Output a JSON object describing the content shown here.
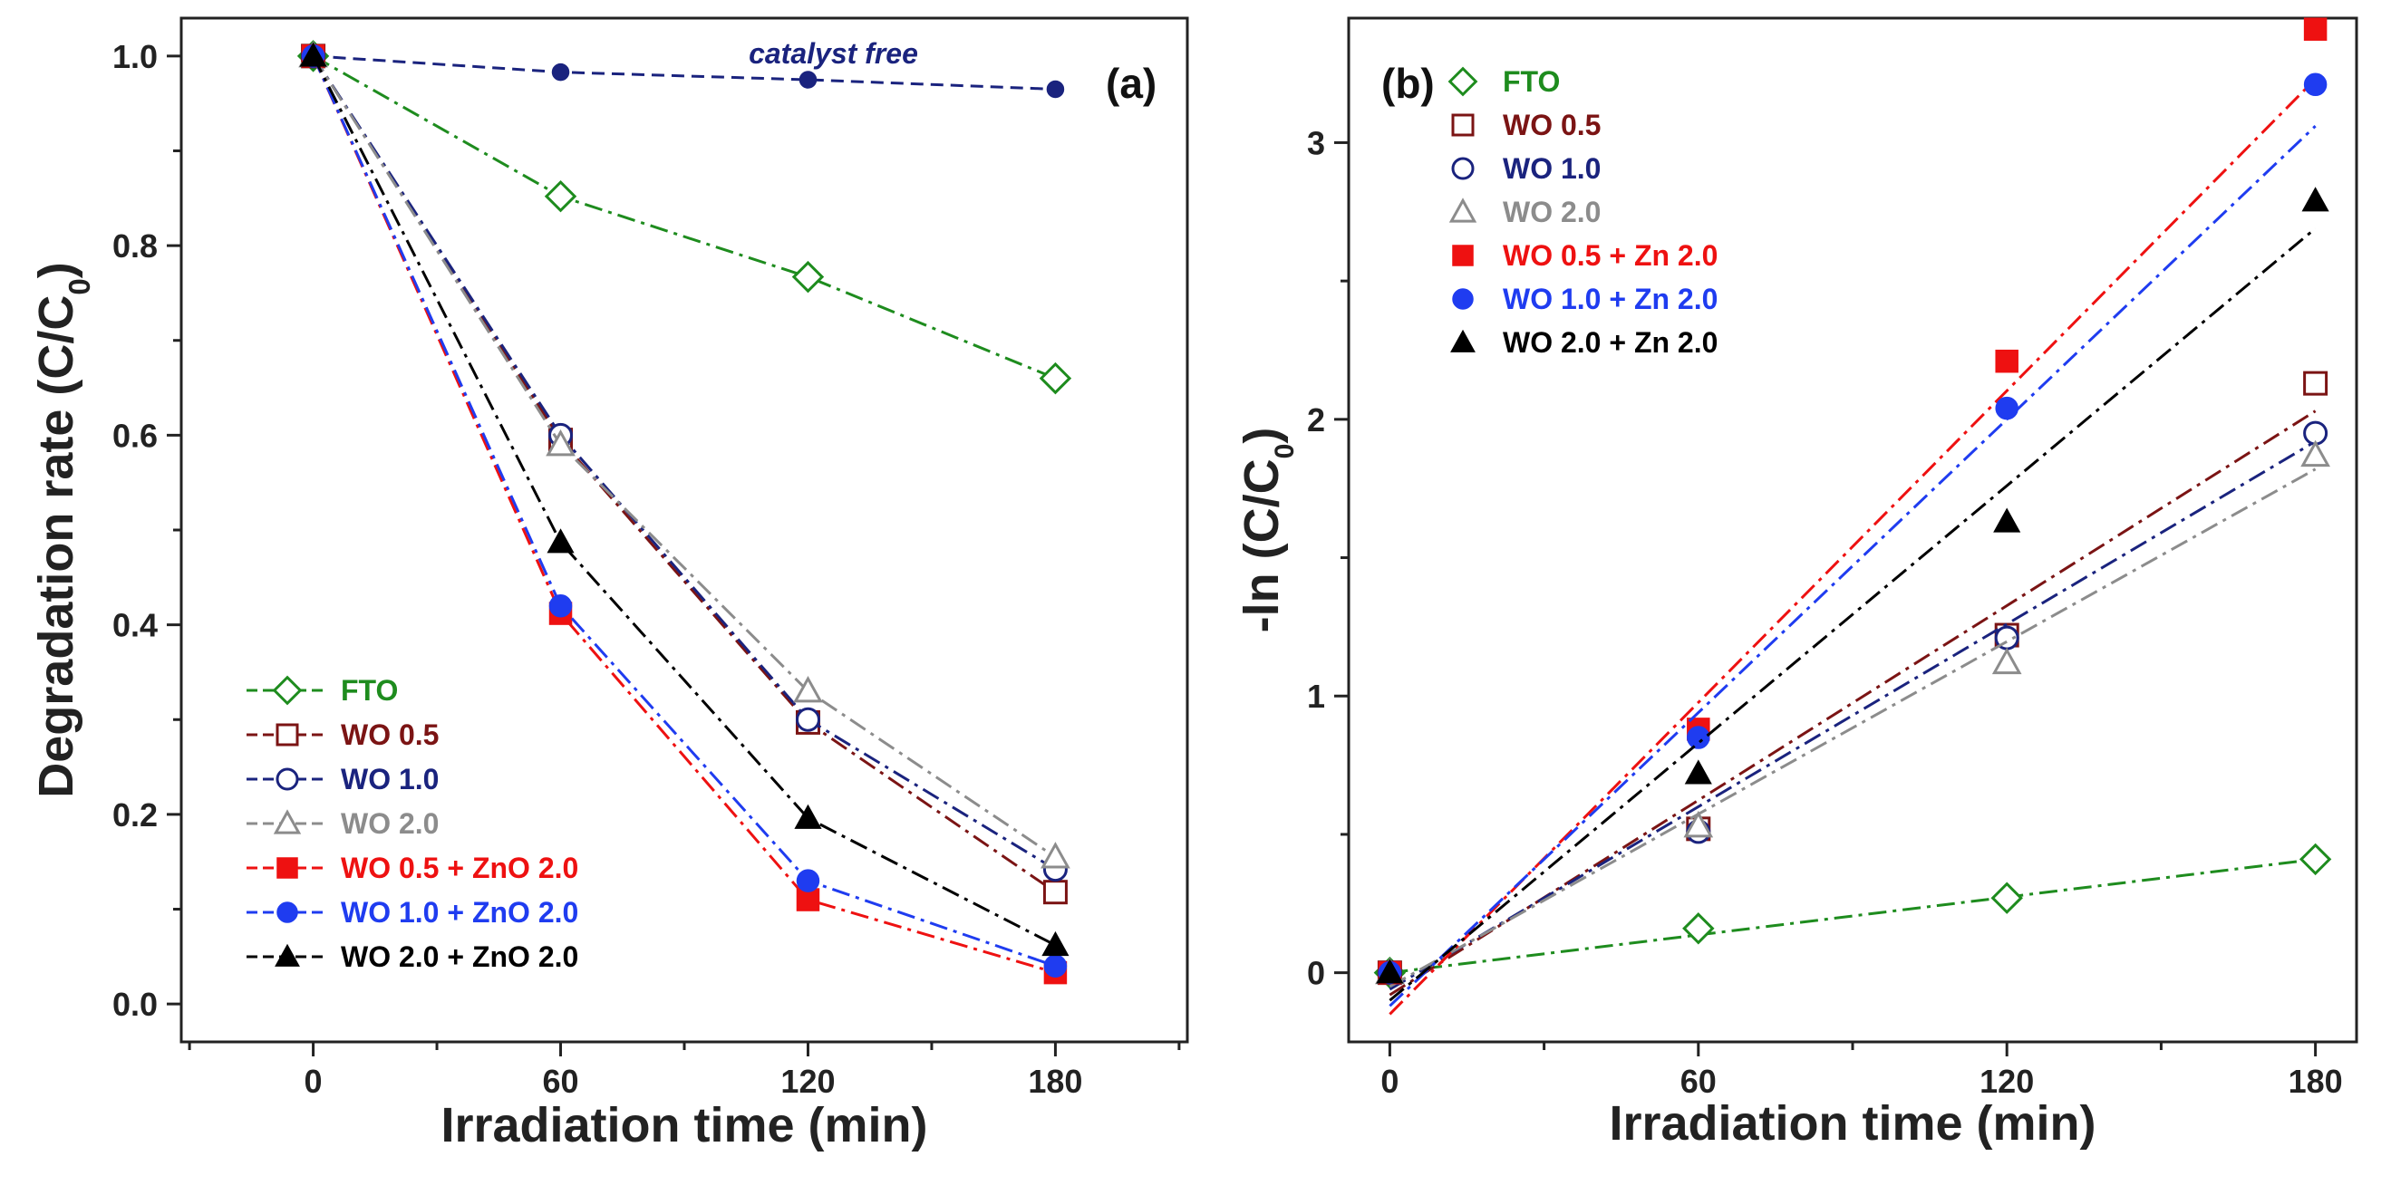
{
  "chart_data": [
    {
      "type": "line",
      "panel_label": "(a)",
      "xlabel": "Irradiation time (min)",
      "ylabel": "Degradation rate (C/C0)",
      "ylabel_main": "Degradation rate (C/C",
      "ylabel_sub": "0",
      "ylabel_close": ")",
      "xlim": [
        -32,
        212
      ],
      "ylim": [
        -0.04,
        1.04
      ],
      "x_ticks": [
        0,
        60,
        120,
        180
      ],
      "x_tick_labels": [
        "0",
        "60",
        "120",
        "180"
      ],
      "y_ticks": [
        0.0,
        0.2,
        0.4,
        0.6,
        0.8,
        1.0
      ],
      "y_tick_labels": [
        "0.0",
        "0.2",
        "0.4",
        "0.6",
        "0.8",
        "1.0"
      ],
      "annotation": "catalyst free",
      "series": [
        {
          "name": "catalyst free",
          "color": "#1a237e",
          "marker": "dot",
          "dash": "dash",
          "x": [
            0,
            60,
            120,
            180
          ],
          "values": [
            1.0,
            0.983,
            0.975,
            0.965
          ]
        },
        {
          "name": "FTO",
          "color": "#1e8c1e",
          "marker": "diamond-open",
          "dash": "dashdot",
          "x": [
            0,
            60,
            120,
            180
          ],
          "values": [
            1.0,
            0.852,
            0.767,
            0.66
          ]
        },
        {
          "name": "WO 0.5",
          "color": "#7b1414",
          "marker": "square-open",
          "dash": "dashdot",
          "x": [
            0,
            60,
            120,
            180
          ],
          "values": [
            1.0,
            0.595,
            0.297,
            0.118
          ]
        },
        {
          "name": "WO 1.0",
          "color": "#1a237e",
          "marker": "circle-open",
          "dash": "dashdot",
          "x": [
            0,
            60,
            120,
            180
          ],
          "values": [
            1.0,
            0.6,
            0.3,
            0.142
          ]
        },
        {
          "name": "WO 2.0",
          "color": "#8c8c8c",
          "marker": "triangle-open",
          "dash": "dashdot",
          "x": [
            0,
            60,
            120,
            180
          ],
          "values": [
            1.0,
            0.59,
            0.33,
            0.155
          ]
        },
        {
          "name": "WO 0.5 + ZnO 2.0",
          "color": "#ee1111",
          "marker": "square",
          "dash": "dashdot",
          "x": [
            0,
            60,
            120,
            180
          ],
          "values": [
            1.0,
            0.412,
            0.11,
            0.033
          ]
        },
        {
          "name": "WO 1.0 + ZnO 2.0",
          "color": "#1f3cf0",
          "marker": "circle",
          "dash": "dashdot",
          "x": [
            0,
            60,
            120,
            180
          ],
          "values": [
            1.0,
            0.42,
            0.13,
            0.04
          ]
        },
        {
          "name": "WO 2.0 + ZnO 2.0",
          "color": "#000000",
          "marker": "triangle",
          "dash": "dashdot",
          "x": [
            0,
            60,
            120,
            180
          ],
          "values": [
            1.0,
            0.487,
            0.196,
            0.062
          ]
        }
      ],
      "legend": [
        "FTO",
        "WO 0.5",
        "WO 1.0",
        "WO 2.0",
        "WO 0.5 + ZnO 2.0",
        "WO 1.0 + ZnO 2.0",
        "WO 2.0 + ZnO 2.0"
      ],
      "legend_placement": "bottom-left"
    },
    {
      "type": "scatter",
      "panel_label": "(b)",
      "xlabel": "Irradiation time (min)",
      "ylabel": "-ln (C/C0)",
      "ylabel_main": "-ln (C/C",
      "ylabel_sub": "0",
      "ylabel_close": ")",
      "xlim": [
        -8,
        188
      ],
      "ylim": [
        -0.25,
        3.45
      ],
      "x_ticks": [
        0,
        60,
        120,
        180
      ],
      "x_tick_labels": [
        "0",
        "60",
        "120",
        "180"
      ],
      "y_ticks": [
        0,
        1,
        2,
        3
      ],
      "y_tick_labels": [
        "0",
        "1",
        "2",
        "3"
      ],
      "series": [
        {
          "name": "FTO",
          "color": "#1e8c1e",
          "marker": "diamond-open",
          "x": [
            0,
            60,
            120,
            180
          ],
          "values": [
            0.0,
            0.16,
            0.27,
            0.41
          ],
          "fit": [
            0.0,
            0.41
          ]
        },
        {
          "name": "WO 0.5",
          "color": "#7b1414",
          "marker": "square-open",
          "x": [
            0,
            60,
            120,
            180
          ],
          "values": [
            0.0,
            0.52,
            1.22,
            2.13
          ],
          "fit": [
            -0.08,
            2.03
          ]
        },
        {
          "name": "WO 1.0",
          "color": "#1a237e",
          "marker": "circle-open",
          "x": [
            0,
            60,
            120,
            180
          ],
          "values": [
            0.0,
            0.51,
            1.21,
            1.95
          ],
          "fit": [
            -0.06,
            1.92
          ]
        },
        {
          "name": "WO 2.0",
          "color": "#8c8c8c",
          "marker": "triangle-open",
          "x": [
            0,
            60,
            120,
            180
          ],
          "values": [
            0.0,
            0.53,
            1.12,
            1.87
          ],
          "fit": [
            -0.05,
            1.82
          ]
        },
        {
          "name": "WO 0.5 + Zn 2.0",
          "color": "#ee1111",
          "marker": "square",
          "x": [
            0,
            60,
            120,
            180
          ],
          "values": [
            0.0,
            0.88,
            2.21,
            3.41
          ],
          "fit": [
            -0.15,
            3.23
          ]
        },
        {
          "name": "WO 1.0 + Zn 2.0",
          "color": "#1f3cf0",
          "marker": "circle",
          "x": [
            0,
            60,
            120,
            180
          ],
          "values": [
            0.0,
            0.85,
            2.04,
            3.21
          ],
          "fit": [
            -0.12,
            3.06
          ]
        },
        {
          "name": "WO 2.0 + Zn 2.0",
          "color": "#000000",
          "marker": "triangle",
          "x": [
            0,
            60,
            120,
            180
          ],
          "values": [
            0.0,
            0.72,
            1.63,
            2.79
          ],
          "fit": [
            -0.1,
            2.69
          ]
        }
      ],
      "legend": [
        "FTO",
        "WO 0.5",
        "WO 1.0",
        "WO 2.0",
        "WO 0.5 + Zn 2.0",
        "WO 1.0 + Zn 2.0",
        "WO 2.0 + Zn 2.0"
      ],
      "legend_placement": "top-left"
    }
  ]
}
